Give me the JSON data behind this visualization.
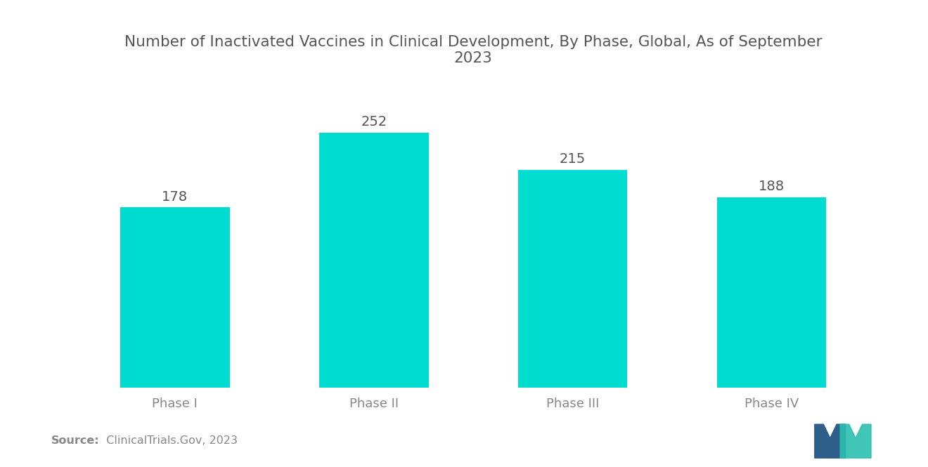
{
  "title": "Number of Inactivated Vaccines in Clinical Development, By Phase, Global, As of September\n2023",
  "categories": [
    "Phase I",
    "Phase II",
    "Phase III",
    "Phase IV"
  ],
  "values": [
    178,
    252,
    215,
    188
  ],
  "bar_color": "#00DDD0",
  "value_labels": [
    "178",
    "252",
    "215",
    "188"
  ],
  "source_label": "Source:",
  "source_text": "  ClinicalTrials.Gov, 2023",
  "background_color": "#ffffff",
  "title_fontsize": 15.5,
  "tick_fontsize": 13,
  "value_fontsize": 14,
  "title_color": "#555555",
  "tick_color": "#888888",
  "value_label_color": "#555555",
  "source_fontsize": 11.5,
  "ylim": [
    0,
    300
  ],
  "bar_width": 0.55,
  "x_positions": [
    0,
    1,
    2,
    3
  ],
  "logo_navy": "#2E5F8A",
  "logo_teal": "#2BBFB0"
}
